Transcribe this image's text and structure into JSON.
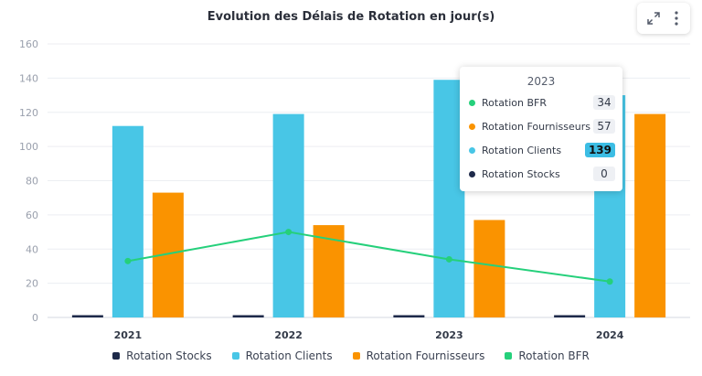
{
  "chart_data": {
    "type": "bar",
    "title": "Evolution des Délais de Rotation en jour(s)",
    "categories": [
      "2021",
      "2022",
      "2023",
      "2024"
    ],
    "ylim": [
      0,
      160
    ],
    "yticks": [
      0,
      20,
      40,
      60,
      80,
      100,
      120,
      140,
      160
    ],
    "series": [
      {
        "name": "Rotation Stocks",
        "type": "bar",
        "color": "#1e2a4a",
        "values": [
          0,
          0,
          0,
          0
        ]
      },
      {
        "name": "Rotation Clients",
        "type": "bar",
        "color": "#48c6e6",
        "values": [
          112,
          119,
          139,
          130
        ]
      },
      {
        "name": "Rotation Fournisseurs",
        "type": "bar",
        "color": "#fa9300",
        "values": [
          73,
          54,
          57,
          119
        ]
      },
      {
        "name": "Rotation BFR",
        "type": "line",
        "color": "#25d07b",
        "values": [
          33,
          50,
          34,
          21
        ]
      }
    ],
    "grid": true,
    "legend": "bottom"
  },
  "tooltip": {
    "title": "2023",
    "rows": [
      {
        "label": "Rotation BFR",
        "value": "34",
        "color": "#25d07b"
      },
      {
        "label": "Rotation Fournisseurs",
        "value": "57",
        "color": "#fa9300"
      },
      {
        "label": "Rotation Clients",
        "value": "139",
        "color": "#48c6e6"
      },
      {
        "label": "Rotation Stocks",
        "value": "0",
        "color": "#1e2a4a"
      }
    ]
  },
  "toolbar": {
    "icons": [
      "expand-icon",
      "more-vertical-icon"
    ]
  }
}
